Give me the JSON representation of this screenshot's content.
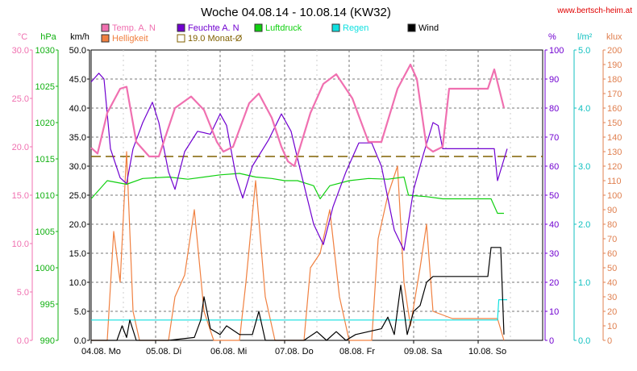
{
  "title": "Woche 04.08.14 - 10.08.14 (KW32)",
  "site": "www.bertsch-heim.at",
  "legend": [
    {
      "label": "Temp. A. N",
      "color": "#f070b0"
    },
    {
      "label": "Feuchte A. N",
      "color": "#7000d0"
    },
    {
      "label": "Luftdruck",
      "color": "#10d010"
    },
    {
      "label": "Regen",
      "color": "#10e0e0"
    },
    {
      "label": "Wind",
      "color": "#000000"
    },
    {
      "label": "Helligkeit",
      "color": "#f08040"
    },
    {
      "label": "19.0 Monat-Ø",
      "color": "#806000"
    }
  ],
  "axes": {
    "temp": {
      "unit": "°C",
      "color": "#f070b0",
      "ticks": [
        "30.0",
        "25.0",
        "20.0",
        "15.0",
        "10.0",
        "5.0",
        "0.0"
      ]
    },
    "pressure": {
      "unit": "hPa",
      "color": "#10b010",
      "ticks": [
        "1030",
        "1025",
        "1020",
        "1015",
        "1010",
        "1005",
        "1000",
        "995",
        "990"
      ]
    },
    "wind": {
      "unit": "km/h",
      "color": "#000000",
      "ticks": [
        "50.0",
        "45.0",
        "40.0",
        "35.0",
        "30.0",
        "25.0",
        "20.0",
        "15.0",
        "10.0",
        "5.0",
        "0.0"
      ]
    },
    "humidity": {
      "unit": "%",
      "color": "#7000d0",
      "ticks": [
        "100",
        "90",
        "80",
        "70",
        "60",
        "50",
        "40",
        "30",
        "20",
        "10",
        "0"
      ]
    },
    "rain": {
      "unit": "l/m²",
      "color": "#10c0c0",
      "ticks": [
        "5.0",
        "4.0",
        "3.0",
        "2.0",
        "1.0",
        "0.0"
      ]
    },
    "light": {
      "unit": "klux",
      "color": "#e08050",
      "ticks": [
        "200",
        "190",
        "180",
        "170",
        "160",
        "150",
        "140",
        "130",
        "120",
        "110",
        "100",
        "90",
        "80",
        "70",
        "60",
        "50",
        "40",
        "30",
        "20",
        "10",
        "0"
      ]
    }
  },
  "x_labels": [
    "04.08.  Mo",
    "05.08.  Di",
    "06.08.  Mi",
    "07.08.  Do",
    "08.08.  Fr",
    "09.08.  Sa",
    "10.08.  So"
  ],
  "chart_data": {
    "type": "line",
    "x": [
      "04.08.",
      "05.08.",
      "06.08.",
      "07.08.",
      "08.08.",
      "09.08.",
      "10.08."
    ],
    "x_unit_note": "",
    "month_avg_temp": 19.0,
    "series": [
      {
        "name": "Temp. A. N",
        "axis": "temp",
        "color": "#f070b0",
        "points": [
          [
            0,
            19.9
          ],
          [
            0.1,
            19.3
          ],
          [
            0.25,
            23.5
          ],
          [
            0.45,
            26.0
          ],
          [
            0.55,
            26.2
          ],
          [
            0.7,
            20.5
          ],
          [
            0.9,
            19.0
          ],
          [
            1.05,
            19.0
          ],
          [
            1.3,
            24.0
          ],
          [
            1.55,
            25.2
          ],
          [
            1.75,
            23.8
          ],
          [
            1.95,
            20.5
          ],
          [
            2.05,
            19.5
          ],
          [
            2.2,
            20.0
          ],
          [
            2.45,
            24.5
          ],
          [
            2.6,
            25.5
          ],
          [
            2.8,
            23.0
          ],
          [
            2.95,
            20.0
          ],
          [
            3.05,
            18.5
          ],
          [
            3.15,
            18.0
          ],
          [
            3.4,
            23.5
          ],
          [
            3.6,
            26.5
          ],
          [
            3.8,
            27.5
          ],
          [
            4.05,
            25.0
          ],
          [
            4.3,
            20.5
          ],
          [
            4.5,
            20.5
          ],
          [
            4.75,
            26.0
          ],
          [
            4.95,
            28.5
          ],
          [
            5.05,
            27.0
          ],
          [
            5.2,
            20.0
          ],
          [
            5.3,
            19.5
          ],
          [
            5.45,
            20.0
          ],
          [
            5.55,
            26.0
          ],
          [
            6.15,
            26.0
          ],
          [
            6.25,
            28.0
          ],
          [
            6.4,
            24.0
          ]
        ]
      },
      {
        "name": "Feuchte A. N",
        "axis": "humidity",
        "color": "#7000d0",
        "points": [
          [
            0,
            89
          ],
          [
            0.12,
            92
          ],
          [
            0.2,
            90
          ],
          [
            0.3,
            66
          ],
          [
            0.45,
            56
          ],
          [
            0.55,
            54
          ],
          [
            0.65,
            66
          ],
          [
            0.8,
            75
          ],
          [
            0.95,
            82
          ],
          [
            1.05,
            75
          ],
          [
            1.2,
            58
          ],
          [
            1.3,
            52
          ],
          [
            1.45,
            65
          ],
          [
            1.65,
            72
          ],
          [
            1.85,
            71
          ],
          [
            2.0,
            78
          ],
          [
            2.1,
            74
          ],
          [
            2.25,
            56
          ],
          [
            2.35,
            49
          ],
          [
            2.5,
            60
          ],
          [
            2.75,
            69
          ],
          [
            2.95,
            78
          ],
          [
            3.1,
            72
          ],
          [
            3.25,
            58
          ],
          [
            3.45,
            40
          ],
          [
            3.6,
            33
          ],
          [
            3.75,
            46
          ],
          [
            3.95,
            58
          ],
          [
            4.15,
            68
          ],
          [
            4.35,
            68
          ],
          [
            4.5,
            60
          ],
          [
            4.7,
            38
          ],
          [
            4.85,
            31
          ],
          [
            5.0,
            52
          ],
          [
            5.15,
            64
          ],
          [
            5.3,
            75
          ],
          [
            5.38,
            74
          ],
          [
            5.45,
            66
          ],
          [
            6.25,
            66
          ],
          [
            6.3,
            55
          ],
          [
            6.45,
            66
          ]
        ]
      },
      {
        "name": "Luftdruck",
        "axis": "pressure",
        "color": "#10d010",
        "points": [
          [
            0,
            1009.5
          ],
          [
            0.25,
            1012.0
          ],
          [
            0.55,
            1011.5
          ],
          [
            0.8,
            1012.3
          ],
          [
            1.2,
            1012.5
          ],
          [
            1.5,
            1012.2
          ],
          [
            2.0,
            1012.8
          ],
          [
            2.3,
            1013.0
          ],
          [
            2.55,
            1012.5
          ],
          [
            2.8,
            1012.3
          ],
          [
            3.0,
            1012.0
          ],
          [
            3.2,
            1012.0
          ],
          [
            3.45,
            1011.3
          ],
          [
            3.55,
            1009.5
          ],
          [
            3.7,
            1011.3
          ],
          [
            4.0,
            1012.0
          ],
          [
            4.3,
            1012.3
          ],
          [
            4.6,
            1012.2
          ],
          [
            4.85,
            1012.5
          ],
          [
            4.92,
            1010.0
          ],
          [
            5.2,
            1009.8
          ],
          [
            5.45,
            1009.5
          ],
          [
            6.2,
            1009.5
          ],
          [
            6.3,
            1007.5
          ],
          [
            6.4,
            1007.5
          ]
        ]
      },
      {
        "name": "Regen",
        "axis": "rain",
        "color": "#10e0e0",
        "points": [
          [
            0,
            0.35
          ],
          [
            6.3,
            0.35
          ],
          [
            6.32,
            0.7
          ],
          [
            6.45,
            0.7
          ]
        ]
      },
      {
        "name": "Wind",
        "axis": "wind",
        "color": "#000000",
        "points": [
          [
            0,
            0
          ],
          [
            0.4,
            0
          ],
          [
            0.48,
            2.5
          ],
          [
            0.55,
            0.5
          ],
          [
            0.6,
            3.5
          ],
          [
            0.7,
            0
          ],
          [
            1.2,
            0
          ],
          [
            1.6,
            0.5
          ],
          [
            1.7,
            3.5
          ],
          [
            1.75,
            7.5
          ],
          [
            1.85,
            2
          ],
          [
            2.0,
            1
          ],
          [
            2.1,
            2.5
          ],
          [
            2.3,
            1
          ],
          [
            2.5,
            1
          ],
          [
            2.6,
            5
          ],
          [
            2.7,
            0
          ],
          [
            3.3,
            0
          ],
          [
            3.5,
            1.5
          ],
          [
            3.65,
            0
          ],
          [
            3.8,
            1.5
          ],
          [
            3.95,
            0
          ],
          [
            4.1,
            1
          ],
          [
            4.3,
            1.5
          ],
          [
            4.5,
            2
          ],
          [
            4.6,
            4
          ],
          [
            4.7,
            1
          ],
          [
            4.8,
            9.5
          ],
          [
            4.9,
            1
          ],
          [
            5.0,
            5
          ],
          [
            5.1,
            6
          ],
          [
            5.2,
            10
          ],
          [
            5.3,
            11
          ],
          [
            6.15,
            11
          ],
          [
            6.2,
            16
          ],
          [
            6.35,
            16
          ],
          [
            6.4,
            1
          ]
        ]
      },
      {
        "name": "Helligkeit",
        "axis": "light",
        "color": "#f08040",
        "points": [
          [
            0,
            0
          ],
          [
            0.25,
            0
          ],
          [
            0.35,
            75
          ],
          [
            0.45,
            40
          ],
          [
            0.55,
            130
          ],
          [
            0.65,
            20
          ],
          [
            0.75,
            0
          ],
          [
            1.2,
            0
          ],
          [
            1.3,
            30
          ],
          [
            1.45,
            45
          ],
          [
            1.6,
            90
          ],
          [
            1.75,
            20
          ],
          [
            1.9,
            0
          ],
          [
            2.3,
            0
          ],
          [
            2.4,
            40
          ],
          [
            2.55,
            110
          ],
          [
            2.7,
            30
          ],
          [
            2.85,
            0
          ],
          [
            3.3,
            0
          ],
          [
            3.4,
            50
          ],
          [
            3.55,
            60
          ],
          [
            3.7,
            90
          ],
          [
            3.85,
            30
          ],
          [
            4.0,
            0
          ],
          [
            4.35,
            0
          ],
          [
            4.45,
            70
          ],
          [
            4.6,
            100
          ],
          [
            4.75,
            120
          ],
          [
            4.85,
            40
          ],
          [
            4.95,
            10
          ],
          [
            5.1,
            50
          ],
          [
            5.2,
            80
          ],
          [
            5.3,
            20
          ],
          [
            5.6,
            15
          ],
          [
            6.3,
            15
          ],
          [
            6.4,
            0
          ]
        ]
      }
    ]
  }
}
